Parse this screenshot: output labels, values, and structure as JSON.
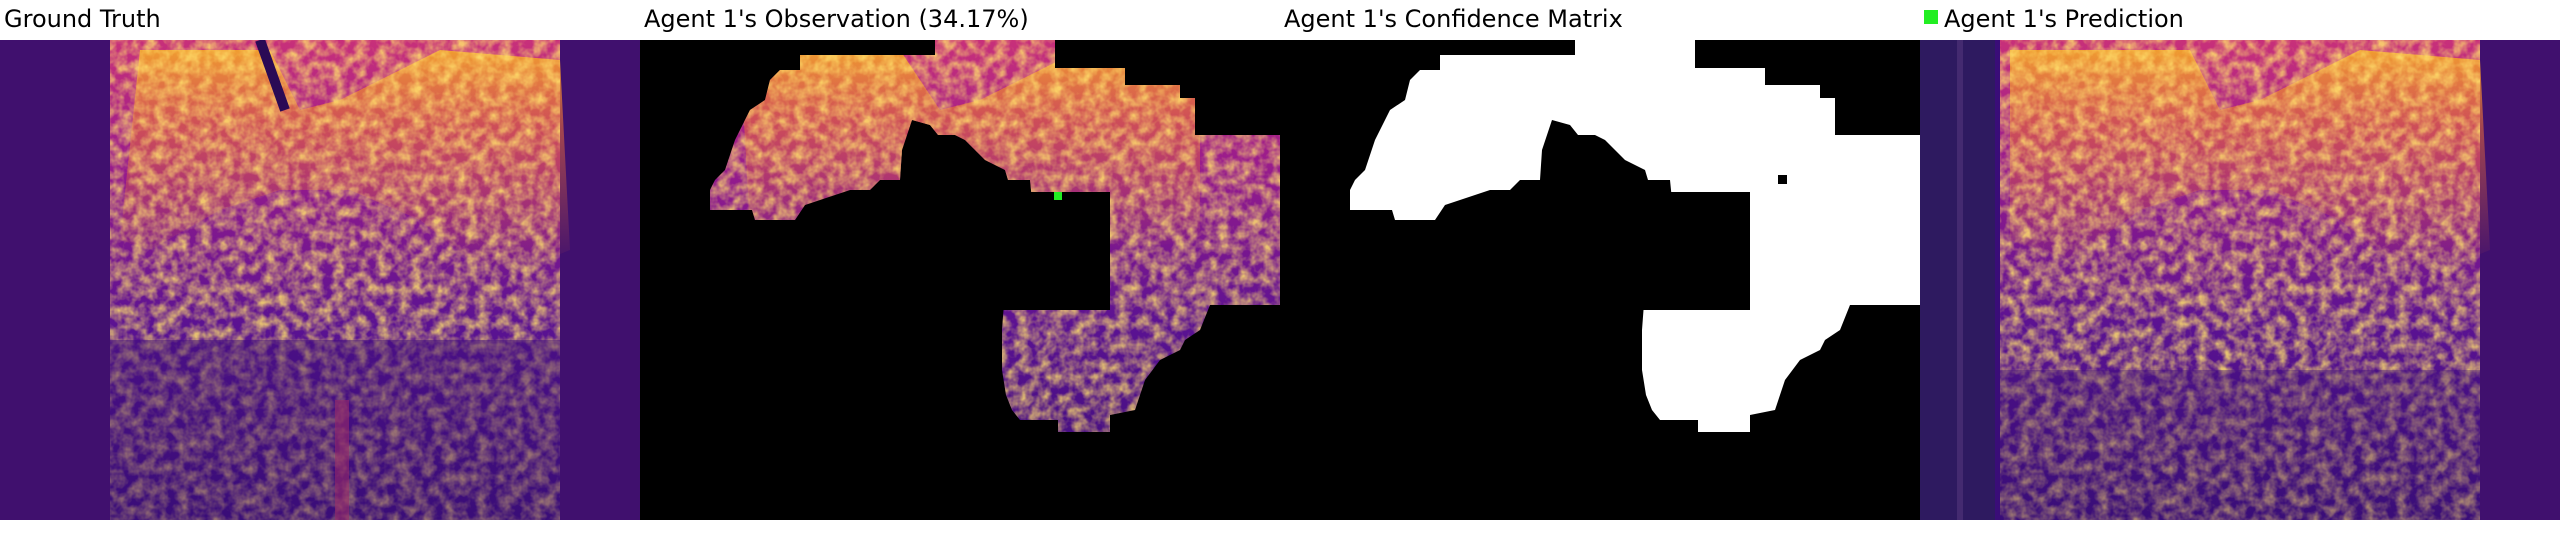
{
  "panels": [
    {
      "title": "Ground Truth"
    },
    {
      "title": "Agent 1's Observation (34.17%)"
    },
    {
      "title": "Agent 1's Confidence Matrix"
    },
    {
      "title": "Agent 1's Prediction"
    }
  ],
  "colors": {
    "background": "#ffffff",
    "heat_dark": "#3a0d78",
    "heat_mid": "#b0208a",
    "heat_hot": "#f2a020",
    "mask": "#000000",
    "confidence": "#ffffff",
    "agent_marker": "#22ee22"
  }
}
